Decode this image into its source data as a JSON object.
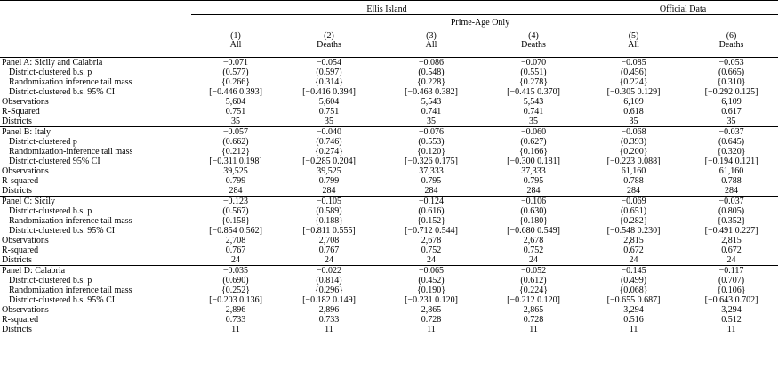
{
  "header": {
    "groups": [
      "Ellis Island",
      "Official Data"
    ],
    "subgroup": "Prime-Age Only",
    "numbers": [
      "(1)",
      "(2)",
      "(3)",
      "(4)",
      "(5)",
      "(6)"
    ],
    "labels": [
      "All",
      "Deaths",
      "All",
      "Deaths",
      "All",
      "Deaths"
    ]
  },
  "panels": [
    {
      "rows": [
        [
          "Panel A: Sicily and Calabria",
          "−0.071",
          "−0.054",
          "−0.086",
          "−0.070",
          "−0.085",
          "−0.053"
        ],
        [
          "District-clustered b.s. p",
          "(0.577)",
          "(0.597)",
          "(0.548)",
          "(0.551)",
          "(0.456)",
          "(0.665)"
        ],
        [
          "Randomization inference tail mass",
          "{0.266}",
          "{0.314}",
          "{0.228}",
          "{0.278}",
          "{0.224}",
          "{0.310}"
        ],
        [
          "District-clustered b.s. 95% CI",
          "[−0.446 0.393]",
          "[−0.416 0.394]",
          "[−0.463 0.382]",
          "[−0.415 0.370]",
          "[−0.305 0.129]",
          "[−0.292 0.125]"
        ],
        [
          "Observations",
          "5,604",
          "5,604",
          "5,543",
          "5,543",
          "6,109",
          "6,109"
        ],
        [
          "R-Squared",
          "0.751",
          "0.751",
          "0.741",
          "0.741",
          "0.618",
          "0.617"
        ],
        [
          "Districts",
          "35",
          "35",
          "35",
          "35",
          "35",
          "35"
        ]
      ]
    },
    {
      "rows": [
        [
          "Panel B: Italy",
          "−0.057",
          "−0.040",
          "−0.076",
          "−0.060",
          "−0.068",
          "−0.037"
        ],
        [
          "District-clustered p",
          "(0.662)",
          "(0.746)",
          "(0.553)",
          "(0.627)",
          "(0.393)",
          "(0.645)"
        ],
        [
          "Randomization-inference tail mass",
          "{0.212}",
          "{0.274}",
          "{0.120}",
          "{0.166}",
          "{0.200}",
          "{0.320}"
        ],
        [
          "District-clustered 95% CI",
          "[−0.311 0.198]",
          "[−0.285 0.204]",
          "[−0.326 0.175]",
          "[−0.300 0.181]",
          "[−0.223 0.088]",
          "[−0.194 0.121]"
        ],
        [
          "Observations",
          "39,525",
          "39,525",
          "37,333",
          "37,333",
          "61,160",
          "61,160"
        ],
        [
          "R-squared",
          "0.799",
          "0.799",
          "0.795",
          "0.795",
          "0.788",
          "0.788"
        ],
        [
          "Districts",
          "284",
          "284",
          "284",
          "284",
          "284",
          "284"
        ]
      ]
    },
    {
      "rows": [
        [
          "Panel C: Sicily",
          "−0.123",
          "−0.105",
          "−0.124",
          "−0.106",
          "−0.069",
          "−0.037"
        ],
        [
          "District-clustered b.s. p",
          "(0.567)",
          "(0.589)",
          "(0.616)",
          "(0.630)",
          "(0.651)",
          "(0.805)"
        ],
        [
          "Randomization inference tail mass",
          "{0.158}",
          "{0.188}",
          "{0.152}",
          "{0.180}",
          "{0.282}",
          "{0.352}"
        ],
        [
          "District-clustered b.s. 95% CI",
          "[−0.854 0.562]",
          "[−0.811 0.555]",
          "[−0.712 0.544]",
          "[−0.680 0.549]",
          "[−0.548 0.230]",
          "[−0.491 0.227]"
        ],
        [
          "Observations",
          "2,708",
          "2,708",
          "2,678",
          "2,678",
          "2,815",
          "2,815"
        ],
        [
          "R-squared",
          "0.767",
          "0.767",
          "0.752",
          "0.752",
          "0.672",
          "0.672"
        ],
        [
          "Districts",
          "24",
          "24",
          "24",
          "24",
          "24",
          "24"
        ]
      ]
    },
    {
      "rows": [
        [
          "Panel D: Calabria",
          "−0.035",
          "−0.022",
          "−0.065",
          "−0.052",
          "−0.145",
          "−0.117"
        ],
        [
          "District-clustered b.s. p",
          "(0.690)",
          "(0.814)",
          "(0.452)",
          "(0.612)",
          "(0.499)",
          "(0.707)"
        ],
        [
          "Randomization inference tail mass",
          "{0.252}",
          "{0.296}",
          "{0.190}",
          "{0.224}",
          "{0.068}",
          "{0.106}"
        ],
        [
          "District-clustered b.s. 95% CI",
          "[−0.203 0.136]",
          "[−0.182 0.149]",
          "[−0.231 0.120]",
          "[−0.212 0.120]",
          "[−0.655 0.687]",
          "[−0.643 0.702]"
        ],
        [
          "Observations",
          "2,896",
          "2,896",
          "2,865",
          "2,865",
          "3,294",
          "3,294"
        ],
        [
          "R-squared",
          "0.733",
          "0.733",
          "0.728",
          "0.728",
          "0.516",
          "0.512"
        ],
        [
          "Districts",
          "11",
          "11",
          "11",
          "11",
          "11",
          "11"
        ]
      ]
    }
  ]
}
